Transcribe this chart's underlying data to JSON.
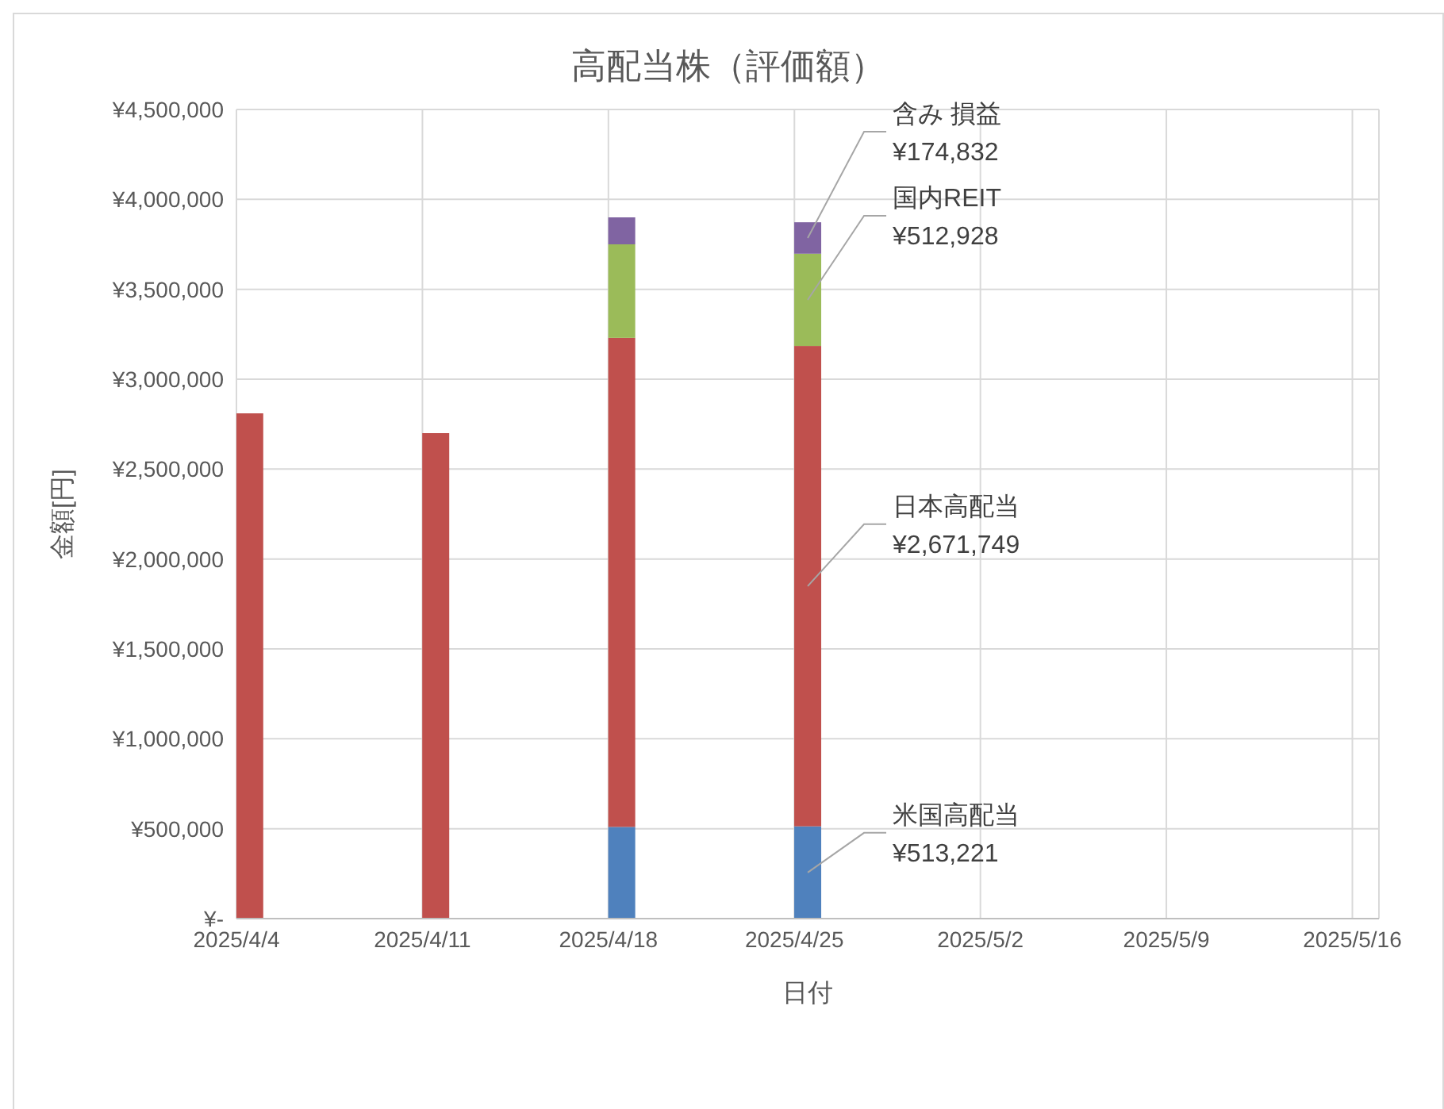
{
  "chart_data": {
    "type": "bar",
    "title": "高配当株（評価額）",
    "xlabel": "日付",
    "ylabel": "金額[円]",
    "stacked": true,
    "grid": true,
    "x": [
      "2025-04-04",
      "2025-04-11",
      "2025-04-18",
      "2025-04-25"
    ],
    "xlim": [
      "2025-04-04",
      "2025-05-17"
    ],
    "xticks": [
      {
        "value": "2025-04-04",
        "label": "2025/4/4"
      },
      {
        "value": "2025-04-11",
        "label": "2025/4/11"
      },
      {
        "value": "2025-04-18",
        "label": "2025/4/18"
      },
      {
        "value": "2025-04-25",
        "label": "2025/4/25"
      },
      {
        "value": "2025-05-02",
        "label": "2025/5/2"
      },
      {
        "value": "2025-05-09",
        "label": "2025/5/9"
      },
      {
        "value": "2025-05-16",
        "label": "2025/5/16"
      }
    ],
    "ylim": [
      0,
      4500000
    ],
    "yticks": [
      {
        "value": 0,
        "label": "¥-"
      },
      {
        "value": 500000,
        "label": "¥500,000"
      },
      {
        "value": 1000000,
        "label": "¥1,000,000"
      },
      {
        "value": 1500000,
        "label": "¥1,500,000"
      },
      {
        "value": 2000000,
        "label": "¥2,000,000"
      },
      {
        "value": 2500000,
        "label": "¥2,500,000"
      },
      {
        "value": 3000000,
        "label": "¥3,000,000"
      },
      {
        "value": 3500000,
        "label": "¥3,500,000"
      },
      {
        "value": 4000000,
        "label": "¥4,000,000"
      },
      {
        "value": 4500000,
        "label": "¥4,500,000"
      }
    ],
    "series": [
      {
        "name": "米国高配当",
        "color": "#4f81bd",
        "values": [
          null,
          null,
          510000,
          513221
        ],
        "value_labels": [
          null,
          null,
          null,
          "¥513,221"
        ]
      },
      {
        "name": "日本高配当",
        "color": "#c0504d",
        "values": [
          2810000,
          2700000,
          2720000,
          2671749
        ],
        "value_labels": [
          null,
          null,
          null,
          "¥2,671,749"
        ]
      },
      {
        "name": "国内REIT",
        "color": "#9bbb59",
        "values": [
          null,
          null,
          520000,
          512928
        ],
        "value_labels": [
          null,
          null,
          null,
          "¥512,928"
        ]
      },
      {
        "name": "含み 損益",
        "color": "#8064a2",
        "values": [
          null,
          null,
          150000,
          174832
        ],
        "value_labels": [
          null,
          null,
          null,
          "¥174,832"
        ]
      }
    ]
  }
}
